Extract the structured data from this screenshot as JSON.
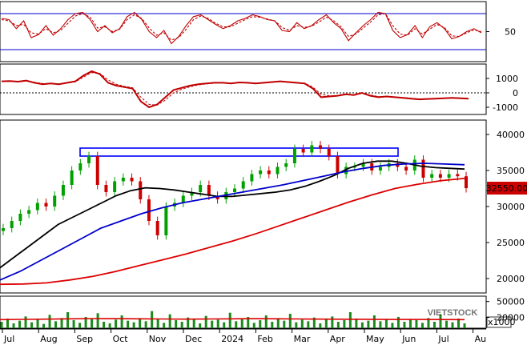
{
  "chart_data": [
    {
      "type": "line",
      "panel": "stochastic-oscillator",
      "yticks": [
        50
      ],
      "reference_lines": [
        80,
        20
      ],
      "series": [
        {
          "color": "#c00000",
          "style": "solid",
          "values": [
            72,
            70,
            55,
            68,
            40,
            45,
            60,
            44,
            55,
            70,
            80,
            82,
            70,
            50,
            60,
            48,
            55,
            75,
            82,
            70,
            50,
            40,
            52,
            30,
            42,
            60,
            75,
            78,
            70,
            62,
            55,
            60,
            68,
            72,
            78,
            75,
            70,
            68,
            52,
            50,
            65,
            55,
            60,
            70,
            78,
            65,
            55,
            35,
            48,
            60,
            70,
            82,
            80,
            52,
            40,
            45,
            60,
            40,
            58,
            65,
            55,
            38,
            42,
            50,
            55,
            48
          ]
        },
        {
          "color": "#c00000",
          "style": "dashed",
          "values": [
            70,
            68,
            60,
            62,
            48,
            46,
            55,
            48,
            52,
            64,
            76,
            80,
            74,
            56,
            58,
            50,
            54,
            70,
            78,
            72,
            56,
            44,
            48,
            36,
            40,
            54,
            70,
            76,
            72,
            64,
            58,
            58,
            64,
            70,
            75,
            74,
            71,
            68,
            57,
            52,
            60,
            57,
            59,
            66,
            74,
            68,
            58,
            42,
            46,
            56,
            66,
            78,
            80,
            60,
            46,
            44,
            55,
            46,
            54,
            62,
            57,
            43,
            42,
            48,
            53,
            50
          ]
        }
      ],
      "ylim": [
        0,
        100
      ]
    },
    {
      "type": "line",
      "panel": "macd",
      "yticks": [
        1000,
        0,
        -1000
      ],
      "zero_line": true,
      "series": [
        {
          "color": "#c00000",
          "style": "solid",
          "values": [
            800,
            820,
            780,
            850,
            700,
            600,
            650,
            600,
            700,
            800,
            1200,
            1500,
            1300,
            700,
            500,
            400,
            300,
            -600,
            -1000,
            -800,
            -300,
            200,
            350,
            500,
            600,
            650,
            700,
            700,
            650,
            720,
            700,
            650,
            700,
            750,
            800,
            750,
            700,
            650,
            300,
            -300,
            -250,
            -200,
            -100,
            -150,
            0,
            -200,
            -300,
            -250,
            -300,
            -350,
            -400,
            -450,
            -420,
            -400,
            -380,
            -350,
            -380,
            -400
          ]
        },
        {
          "color": "#c00000",
          "style": "dashed",
          "values": [
            780,
            800,
            790,
            820,
            740,
            650,
            640,
            620,
            680,
            760,
            1100,
            1400,
            1350,
            900,
            600,
            450,
            350,
            -300,
            -800,
            -850,
            -500,
            0,
            250,
            420,
            550,
            620,
            680,
            700,
            670,
            700,
            700,
            670,
            690,
            730,
            780,
            760,
            720,
            670,
            400,
            -100,
            -200,
            -210,
            -140,
            -140,
            -40,
            -150,
            -260,
            -260,
            -290,
            -330,
            -380,
            -430,
            -420,
            -405,
            -385,
            -360,
            -370,
            -390
          ]
        }
      ],
      "ylim": [
        -1500,
        2000
      ]
    },
    {
      "type": "candlestick",
      "panel": "price",
      "yticks": [
        40000,
        35000,
        30000,
        25000,
        20000
      ],
      "last_price_label": "32550.00",
      "last_price": 32550,
      "close": [
        27000,
        28000,
        29000,
        29500,
        30500,
        30000,
        31500,
        33000,
        35000,
        36000,
        37000,
        33000,
        32000,
        33500,
        34000,
        33500,
        31000,
        28000,
        26000,
        30000,
        30500,
        31500,
        32000,
        33000,
        31500,
        31000,
        32000,
        32500,
        33500,
        34500,
        35000,
        34500,
        35500,
        36000,
        38000,
        37500,
        38500,
        38000,
        37000,
        34500,
        35500,
        35500,
        36000,
        35000,
        35500,
        36000,
        35500,
        35000,
        36500,
        34000,
        34500,
        34000,
        34500,
        34200,
        32550
      ],
      "moving_averages": [
        {
          "name": "MA20",
          "color": "#000000",
          "values": [
            21500,
            23000,
            24500,
            26000,
            27500,
            28500,
            29500,
            30500,
            31500,
            32200,
            32600,
            32500,
            32300,
            32000,
            31700,
            31400,
            31400,
            31600,
            31800,
            32000,
            32300,
            32800,
            33500,
            34300,
            35300,
            36000,
            36300,
            36300,
            36000,
            35600,
            35400,
            35300,
            35200
          ]
        },
        {
          "name": "MA50",
          "color": "#0000cc",
          "values": [
            19800,
            21000,
            22500,
            24000,
            25500,
            27000,
            28000,
            29000,
            29800,
            30500,
            31000,
            31500,
            32000,
            32500,
            33000,
            33600,
            34200,
            34800,
            35300,
            35700,
            35900,
            36000,
            35900,
            35800
          ]
        },
        {
          "name": "MA200",
          "color": "#dd0000",
          "values": [
            19200,
            19250,
            19400,
            19800,
            20300,
            21000,
            21800,
            22600,
            23400,
            24300,
            25200,
            26200,
            27300,
            28400,
            29500,
            30600,
            31600,
            32500,
            33100,
            33600,
            33900
          ]
        }
      ],
      "ylim": [
        18000,
        42000
      ]
    },
    {
      "type": "bar",
      "panel": "volume",
      "yticks": [
        50000,
        20000
      ],
      "unit_label": "x1000",
      "values": [
        12000,
        18000,
        9000,
        14000,
        22000,
        11000,
        16000,
        8000,
        25000,
        13000,
        19000,
        30000,
        15000,
        10000,
        21000,
        17000,
        28000,
        12000,
        9000,
        16000,
        24000,
        14000,
        11000,
        19000,
        13000,
        32000,
        18000,
        10000,
        26000,
        15000,
        12000,
        20000,
        17000,
        9000,
        23000,
        14000,
        16000,
        11000,
        29000,
        13000,
        18000,
        21000,
        10000,
        15000,
        24000,
        12000,
        19000,
        14000,
        27000,
        11000,
        16000,
        13000,
        20000,
        9000,
        17000,
        22000,
        12000,
        15000,
        30000,
        18000,
        11000,
        14000,
        24000,
        13000,
        16000,
        10000,
        21000,
        12000,
        17000,
        15000,
        10000,
        19000,
        12000,
        26000,
        14000,
        11000,
        18000,
        9000
      ],
      "moving_average": {
        "color": "#dd0000",
        "values": [
          16000,
          16500,
          17000,
          17500,
          18000,
          17800,
          17500,
          17200,
          17000,
          17200,
          17500,
          17800,
          17600,
          17300,
          17000,
          16800,
          16600,
          16400,
          16300,
          16200,
          16000
        ]
      },
      "ylim": [
        0,
        60000
      ]
    }
  ],
  "x_axis": {
    "labels": [
      "Jul",
      "Aug",
      "Sep",
      "Oct",
      "Nov",
      "Dec",
      "2024",
      "Feb",
      "Mar",
      "Apr",
      "May",
      "Jun",
      "Jul",
      "Au"
    ]
  },
  "colors": {
    "up_candle": "#00a000",
    "down_candle": "#cc0000",
    "volume_bar": "#1a8a1a",
    "zone_box": "#0000ff",
    "price_label_bg": "#cc0000"
  },
  "watermark": "VIETSTOCK"
}
